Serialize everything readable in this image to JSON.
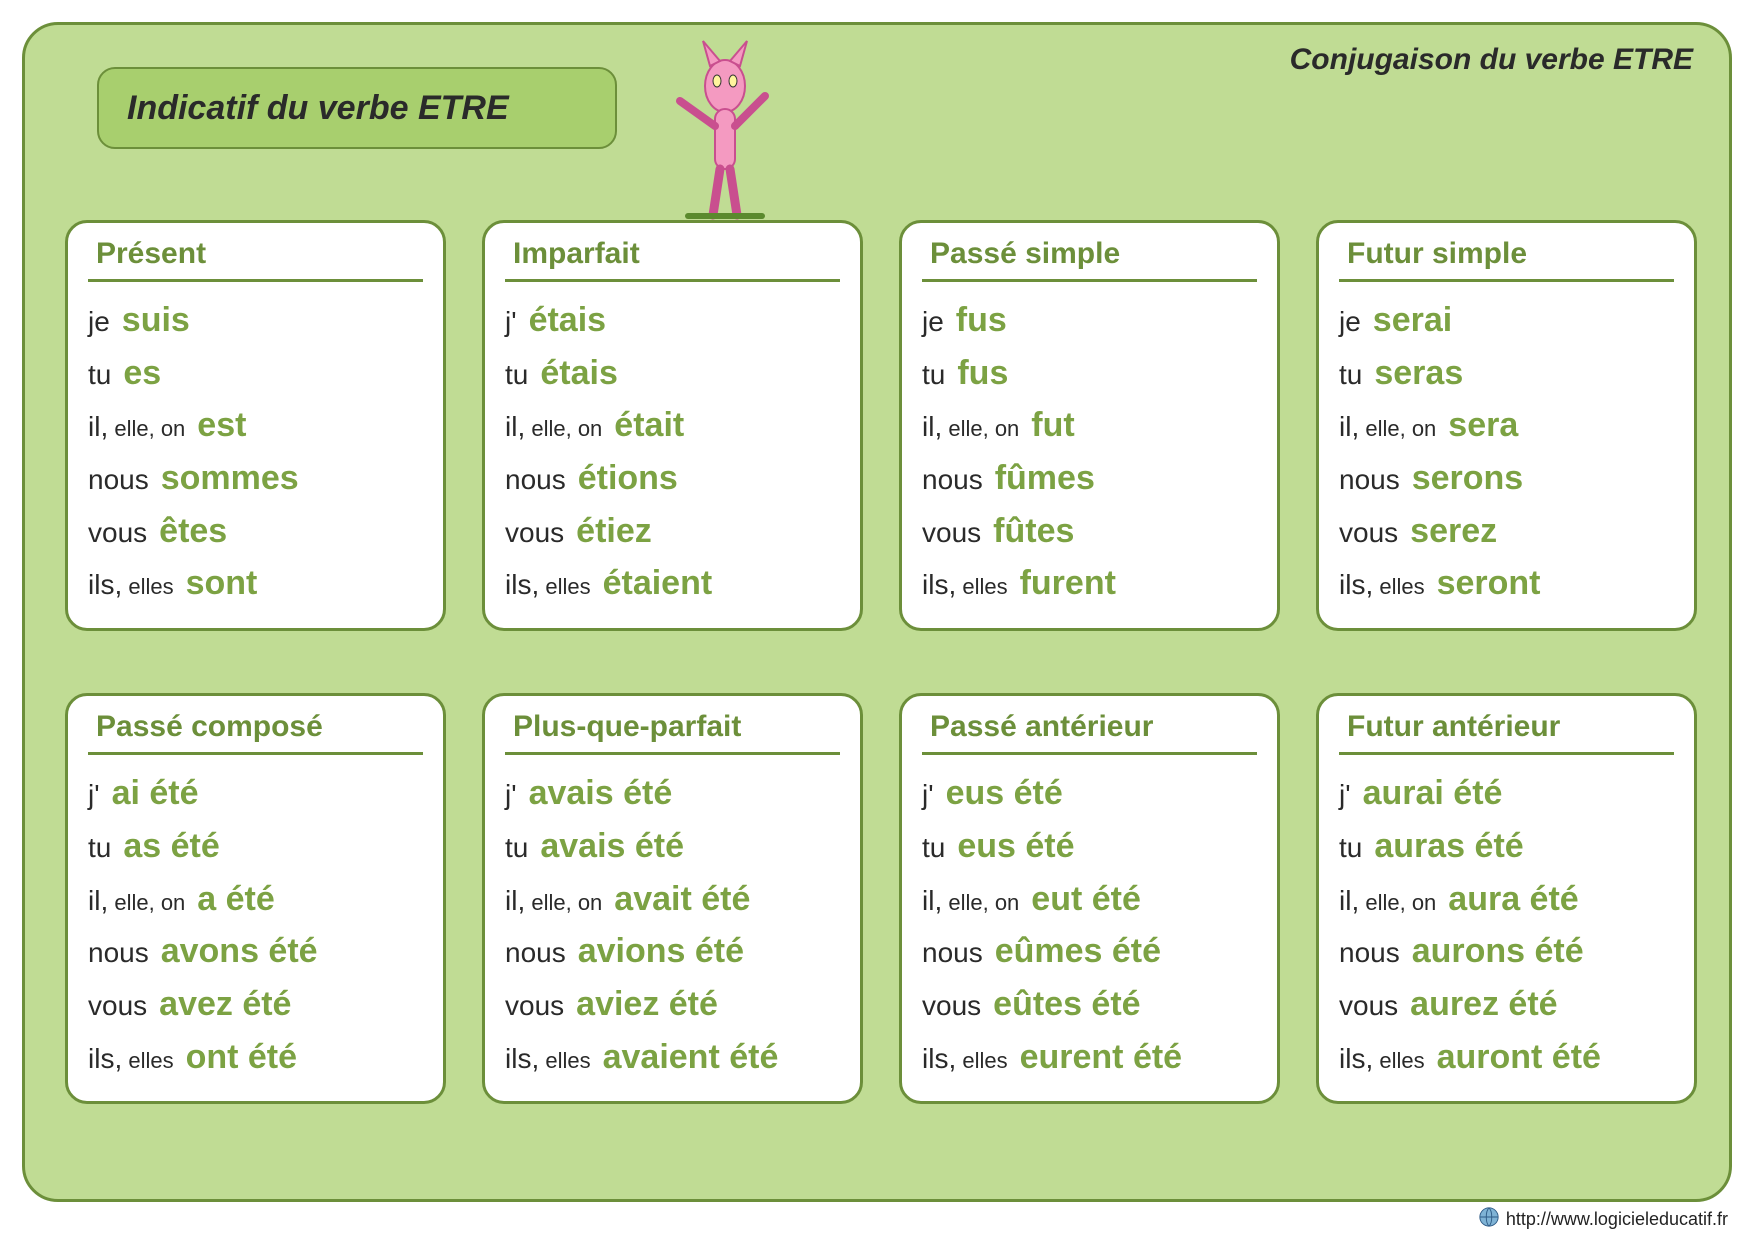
{
  "colors": {
    "panel_bg": "#c0dc94",
    "panel_border": "#6c8f3a",
    "title_bg": "#a8cf6e",
    "card_bg": "#ffffff",
    "verb_color": "#7ca243",
    "text_color": "#2a2a2a"
  },
  "corner_title": "Conjugaison du verbe ETRE",
  "main_title": "Indicatif du verbe ETRE",
  "footer_url": "http://www.logicieleducatif.fr",
  "tenses": [
    {
      "name": "Présent",
      "rows": [
        {
          "pronoun": "je",
          "verb": "suis"
        },
        {
          "pronoun": "tu",
          "verb": "es"
        },
        {
          "pronoun": "il,",
          "sub": "elle, on",
          "verb": "est"
        },
        {
          "pronoun": "nous",
          "verb": "sommes"
        },
        {
          "pronoun": "vous",
          "verb": "êtes"
        },
        {
          "pronoun": "ils,",
          "sub": "elles",
          "verb": "sont"
        }
      ]
    },
    {
      "name": "Imparfait",
      "rows": [
        {
          "pronoun": "j'",
          "verb": "étais"
        },
        {
          "pronoun": "tu",
          "verb": "étais"
        },
        {
          "pronoun": "il,",
          "sub": "elle, on",
          "verb": "était"
        },
        {
          "pronoun": "nous",
          "verb": "étions"
        },
        {
          "pronoun": "vous",
          "verb": "étiez"
        },
        {
          "pronoun": "ils,",
          "sub": "elles",
          "verb": "étaient"
        }
      ]
    },
    {
      "name": "Passé simple",
      "rows": [
        {
          "pronoun": "je",
          "verb": "fus"
        },
        {
          "pronoun": "tu",
          "verb": "fus"
        },
        {
          "pronoun": "il,",
          "sub": "elle, on",
          "verb": "fut"
        },
        {
          "pronoun": "nous",
          "verb": "fûmes"
        },
        {
          "pronoun": "vous",
          "verb": "fûtes"
        },
        {
          "pronoun": "ils,",
          "sub": "elles",
          "verb": "furent"
        }
      ]
    },
    {
      "name": "Futur simple",
      "rows": [
        {
          "pronoun": "je",
          "verb": "serai"
        },
        {
          "pronoun": "tu",
          "verb": "seras"
        },
        {
          "pronoun": "il,",
          "sub": "elle, on",
          "verb": "sera"
        },
        {
          "pronoun": "nous",
          "verb": "serons"
        },
        {
          "pronoun": "vous",
          "verb": "serez"
        },
        {
          "pronoun": "ils,",
          "sub": "elles",
          "verb": "seront"
        }
      ]
    },
    {
      "name": "Passé composé",
      "rows": [
        {
          "pronoun": "j'",
          "verb": "ai été"
        },
        {
          "pronoun": "tu",
          "verb": "as été"
        },
        {
          "pronoun": "il,",
          "sub": "elle, on",
          "verb": "a été"
        },
        {
          "pronoun": "nous",
          "verb": "avons été"
        },
        {
          "pronoun": "vous",
          "verb": "avez été"
        },
        {
          "pronoun": "ils,",
          "sub": "elles",
          "verb": "ont été"
        }
      ]
    },
    {
      "name": "Plus-que-parfait",
      "rows": [
        {
          "pronoun": "j'",
          "verb": "avais été"
        },
        {
          "pronoun": "tu",
          "verb": "avais été"
        },
        {
          "pronoun": "il,",
          "sub": "elle, on",
          "verb": "avait été"
        },
        {
          "pronoun": "nous",
          "verb": "avions été"
        },
        {
          "pronoun": "vous",
          "verb": "aviez été"
        },
        {
          "pronoun": "ils,",
          "sub": "elles",
          "verb": "avaient été"
        }
      ]
    },
    {
      "name": "Passé antérieur",
      "rows": [
        {
          "pronoun": "j'",
          "verb": "eus été"
        },
        {
          "pronoun": "tu",
          "verb": "eus été"
        },
        {
          "pronoun": "il,",
          "sub": "elle, on",
          "verb": "eut été"
        },
        {
          "pronoun": "nous",
          "verb": "eûmes été"
        },
        {
          "pronoun": "vous",
          "verb": "eûtes été"
        },
        {
          "pronoun": "ils,",
          "sub": "elles",
          "verb": "eurent été"
        }
      ]
    },
    {
      "name": "Futur antérieur",
      "rows": [
        {
          "pronoun": "j'",
          "verb": "aurai été"
        },
        {
          "pronoun": "tu",
          "verb": "auras été"
        },
        {
          "pronoun": "il,",
          "sub": "elle, on",
          "verb": "aura été"
        },
        {
          "pronoun": "nous",
          "verb": "aurons été"
        },
        {
          "pronoun": "vous",
          "verb": "aurez été"
        },
        {
          "pronoun": "ils,",
          "sub": "elles",
          "verb": "auront été"
        }
      ]
    }
  ]
}
